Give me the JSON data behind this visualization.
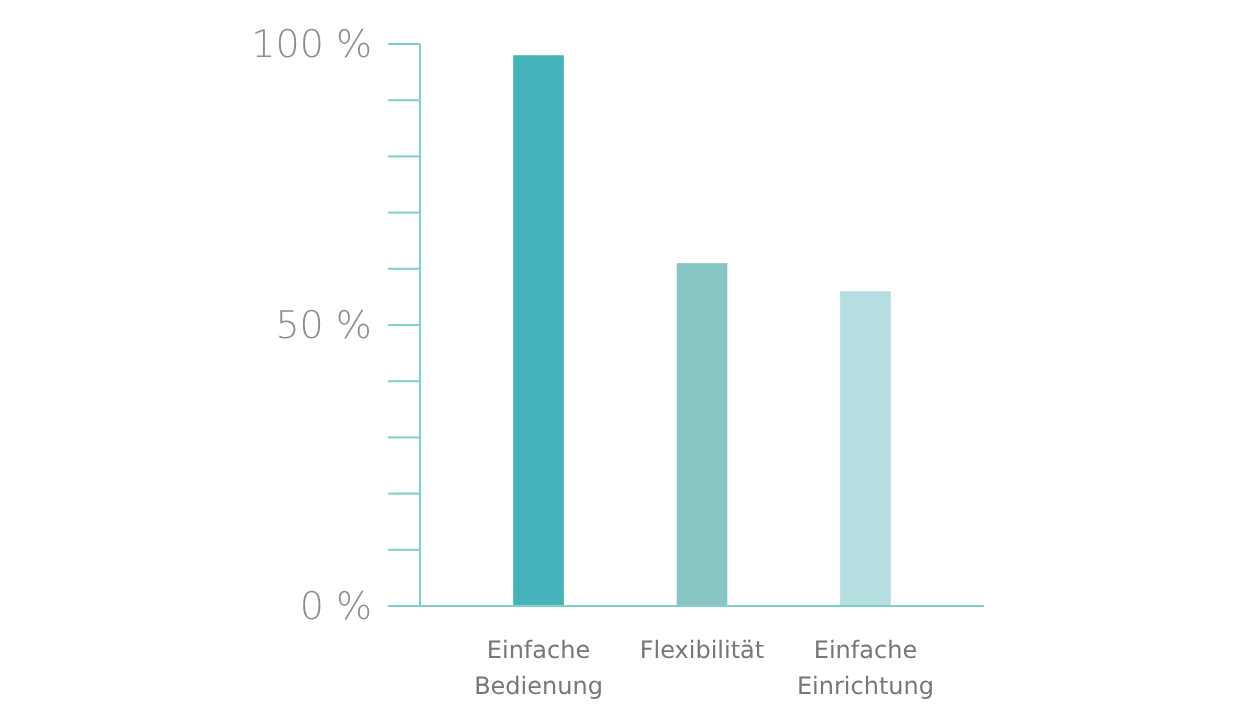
{
  "chart_data": {
    "type": "bar",
    "categories": [
      "Einfache Bedienung",
      "Flexibilität",
      "Einfache Einrichtung"
    ],
    "values": [
      98,
      61,
      56
    ],
    "colors": [
      "#45b3ba",
      "#87c4c4",
      "#b5dee1"
    ],
    "ylim": [
      0,
      100
    ],
    "yticks": [
      {
        "value": 0,
        "label": "0 %"
      },
      {
        "value": 10,
        "label": null
      },
      {
        "value": 20,
        "label": null
      },
      {
        "value": 30,
        "label": null
      },
      {
        "value": 40,
        "label": null
      },
      {
        "value": 50,
        "label": "50 %"
      },
      {
        "value": 60,
        "label": null
      },
      {
        "value": 70,
        "label": null
      },
      {
        "value": 80,
        "label": null
      },
      {
        "value": 90,
        "label": null
      },
      {
        "value": 100,
        "label": "100 %"
      }
    ],
    "grid": false
  }
}
